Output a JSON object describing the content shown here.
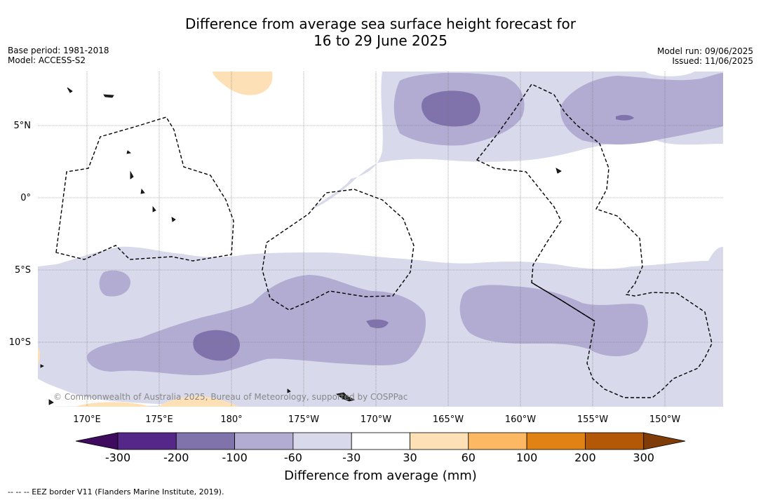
{
  "header": {
    "title_line1": "Difference from average sea surface height forecast for",
    "title_line2": "16 to 29 June 2025",
    "base_period": "Base period: 1981-2018",
    "model": "Model: ACCESS-S2",
    "model_run": "Model run: 09/06/2025",
    "issued": "Issued: 11/06/2025"
  },
  "map": {
    "longitude_labels": [
      "170°E",
      "175°E",
      "180°",
      "175°W",
      "170°W",
      "165°W",
      "160°W",
      "155°W",
      "150°W"
    ],
    "latitude_labels": [
      "5°N",
      "0°",
      "5°S",
      "10°S"
    ],
    "copyright": "© Commonwealth of Australia 2025, Bureau of Meteorology, supported by COSPPac"
  },
  "colorbar": {
    "title": "Difference from average (mm)",
    "ticks": [
      "-300",
      "-200",
      "-100",
      "-60",
      "-30",
      "30",
      "60",
      "100",
      "200",
      "300"
    ],
    "colors": {
      "below_-300": "#3f0b5f",
      "-300_-200": "#542788",
      "-200_-100": "#8073ac",
      "-100_-60": "#b2abd2",
      "-60_-30": "#d8daeb",
      "-30_30": "#ffffff",
      "30_60": "#fee0b6",
      "60_100": "#fdb863",
      "100_200": "#e08214",
      "200_300": "#b35806",
      "above_300": "#7f3b08"
    }
  },
  "footer": {
    "legend_note": "--  --  -- EEZ border V11 (Flanders Marine Institute, 2019)."
  }
}
